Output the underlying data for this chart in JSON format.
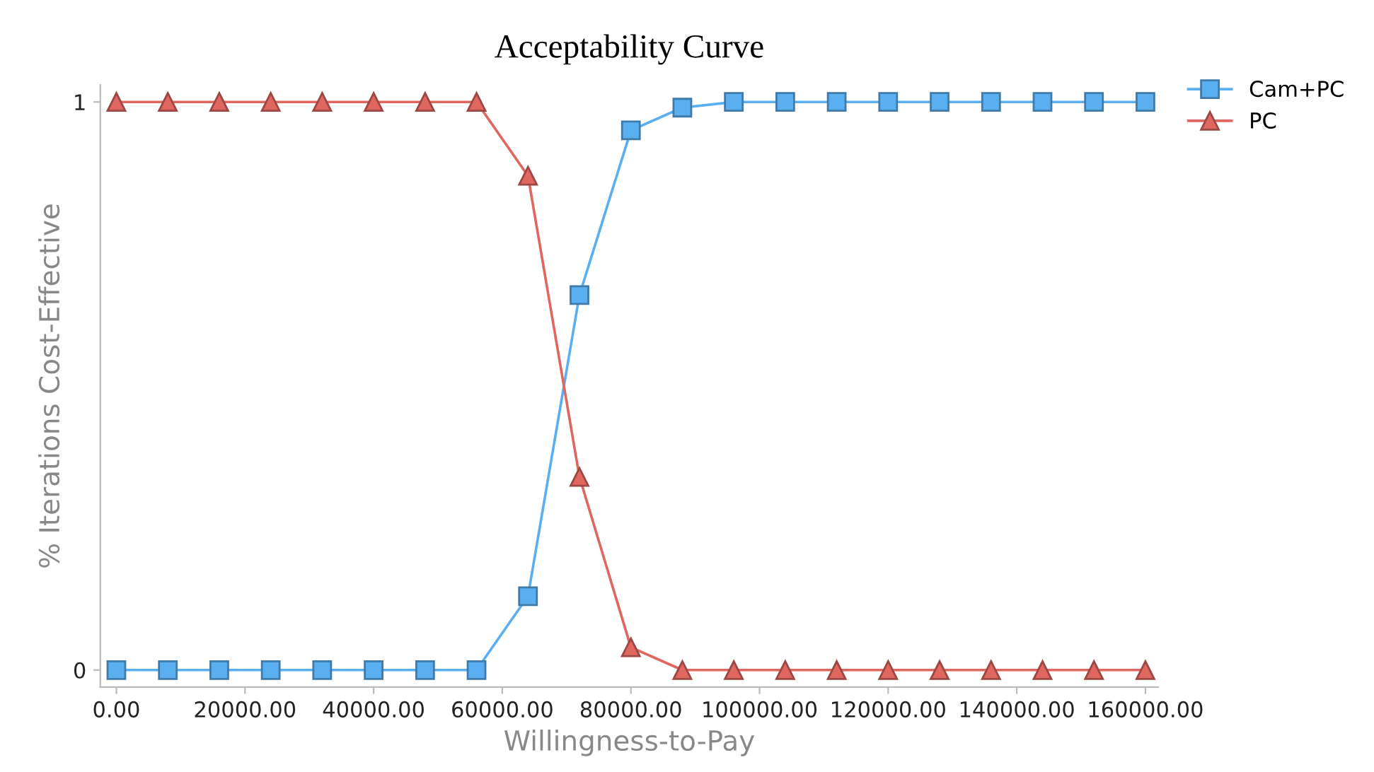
{
  "chart_data": {
    "type": "line",
    "title": "Acceptability Curve",
    "xlabel": "Willingness-to-Pay",
    "ylabel": "% Iterations Cost-Effective",
    "x": [
      0,
      8000,
      16000,
      24000,
      32000,
      40000,
      48000,
      56000,
      64000,
      72000,
      80000,
      88000,
      96000,
      104000,
      112000,
      120000,
      128000,
      136000,
      144000,
      152000,
      160000
    ],
    "series": [
      {
        "name": "Cam+PC",
        "color": "#5aaff0",
        "marker": "square",
        "values": [
          0,
          0,
          0,
          0,
          0,
          0,
          0,
          0,
          0.13,
          0.66,
          0.95,
          0.99,
          1,
          1,
          1,
          1,
          1,
          1,
          1,
          1,
          1
        ]
      },
      {
        "name": "PC",
        "color": "#e06660",
        "marker": "triangle",
        "values": [
          1,
          1,
          1,
          1,
          1,
          1,
          1,
          1,
          0.87,
          0.34,
          0.04,
          0,
          0,
          0,
          0,
          0,
          0,
          0,
          0,
          0,
          0
        ]
      }
    ],
    "xlim": [
      -2500,
      162000
    ],
    "ylim": [
      -0.03,
      1.03
    ],
    "xticks": [
      {
        "value": 0,
        "label": "0.00"
      },
      {
        "value": 20000,
        "label": "20000.00"
      },
      {
        "value": 40000,
        "label": "40000.00"
      },
      {
        "value": 60000,
        "label": "60000.00"
      },
      {
        "value": 80000,
        "label": "80000.00"
      },
      {
        "value": 100000,
        "label": "100000.00"
      },
      {
        "value": 120000,
        "label": "120000.00"
      },
      {
        "value": 140000,
        "label": "140000.00"
      },
      {
        "value": 160000,
        "label": "160000.00"
      }
    ],
    "yticks": [
      0,
      1
    ],
    "grid": false,
    "legend": "top right",
    "line_style": "solid"
  }
}
